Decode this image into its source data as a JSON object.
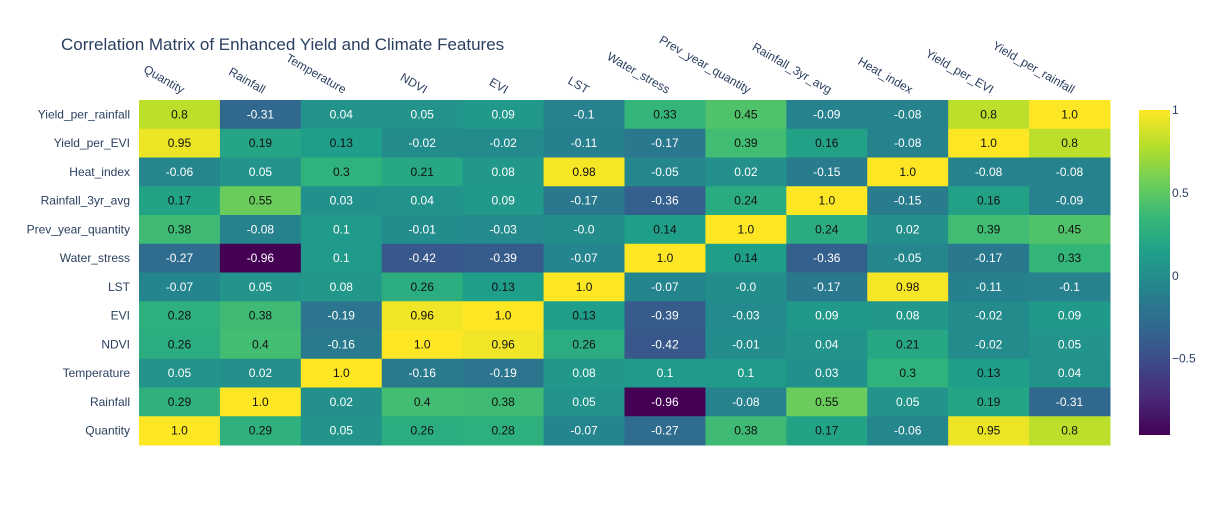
{
  "chart_data": {
    "type": "heatmap",
    "title": "Correlation Matrix of Enhanced Yield and Climate Features",
    "x_labels": [
      "Quantity",
      "Rainfall",
      "Temperature",
      "NDVI",
      "EVI",
      "LST",
      "Water_stress",
      "Prev_year_quantity",
      "Rainfall_3yr_avg",
      "Heat_index",
      "Yield_per_EVI",
      "Yield_per_rainfall"
    ],
    "y_labels_top_to_bottom": [
      "Yield_per_rainfall",
      "Yield_per_EVI",
      "Heat_index",
      "Rainfall_3yr_avg",
      "Prev_year_quantity",
      "Water_stress",
      "LST",
      "EVI",
      "NDVI",
      "Temperature",
      "Rainfall",
      "Quantity"
    ],
    "rows": [
      [
        "0.8",
        "-0.31",
        "0.04",
        "0.05",
        "0.09",
        "-0.1",
        "0.33",
        "0.45",
        "-0.09",
        "-0.08",
        "0.8",
        "1.0"
      ],
      [
        "0.95",
        "0.19",
        "0.13",
        "-0.02",
        "-0.02",
        "-0.11",
        "-0.17",
        "0.39",
        "0.16",
        "-0.08",
        "1.0",
        "0.8"
      ],
      [
        "-0.06",
        "0.05",
        "0.3",
        "0.21",
        "0.08",
        "0.98",
        "-0.05",
        "0.02",
        "-0.15",
        "1.0",
        "-0.08",
        "-0.08"
      ],
      [
        "0.17",
        "0.55",
        "0.03",
        "0.04",
        "0.09",
        "-0.17",
        "-0.36",
        "0.24",
        "1.0",
        "-0.15",
        "0.16",
        "-0.09"
      ],
      [
        "0.38",
        "-0.08",
        "0.1",
        "-0.01",
        "-0.03",
        "-0.0",
        "0.14",
        "1.0",
        "0.24",
        "0.02",
        "0.39",
        "0.45"
      ],
      [
        "-0.27",
        "-0.96",
        "0.1",
        "-0.42",
        "-0.39",
        "-0.07",
        "1.0",
        "0.14",
        "-0.36",
        "-0.05",
        "-0.17",
        "0.33"
      ],
      [
        "-0.07",
        "0.05",
        "0.08",
        "0.26",
        "0.13",
        "1.0",
        "-0.07",
        "-0.0",
        "-0.17",
        "0.98",
        "-0.11",
        "-0.1"
      ],
      [
        "0.28",
        "0.38",
        "-0.19",
        "0.96",
        "1.0",
        "0.13",
        "-0.39",
        "-0.03",
        "0.09",
        "0.08",
        "-0.02",
        "0.09"
      ],
      [
        "0.26",
        "0.4",
        "-0.16",
        "1.0",
        "0.96",
        "0.26",
        "-0.42",
        "-0.01",
        "0.04",
        "0.21",
        "-0.02",
        "0.05"
      ],
      [
        "0.05",
        "0.02",
        "1.0",
        "-0.16",
        "-0.19",
        "0.08",
        "0.1",
        "0.1",
        "0.03",
        "0.3",
        "0.13",
        "0.04"
      ],
      [
        "0.29",
        "1.0",
        "0.02",
        "0.4",
        "0.38",
        "0.05",
        "-0.96",
        "-0.08",
        "0.55",
        "0.05",
        "0.19",
        "-0.31"
      ],
      [
        "1.0",
        "0.29",
        "0.05",
        "0.26",
        "0.28",
        "-0.07",
        "-0.27",
        "0.38",
        "0.17",
        "-0.06",
        "0.95",
        "0.8"
      ]
    ],
    "colorscale": "viridis",
    "zmin": -0.96,
    "zmax": 1.0,
    "colorbar_ticks": [
      {
        "value": 1,
        "label": "1"
      },
      {
        "value": 0.5,
        "label": "0.5"
      },
      {
        "value": 0,
        "label": "0"
      },
      {
        "value": -0.5,
        "label": "−0.5"
      }
    ],
    "x_axis_position": "top",
    "legend": "colorbar-right"
  }
}
